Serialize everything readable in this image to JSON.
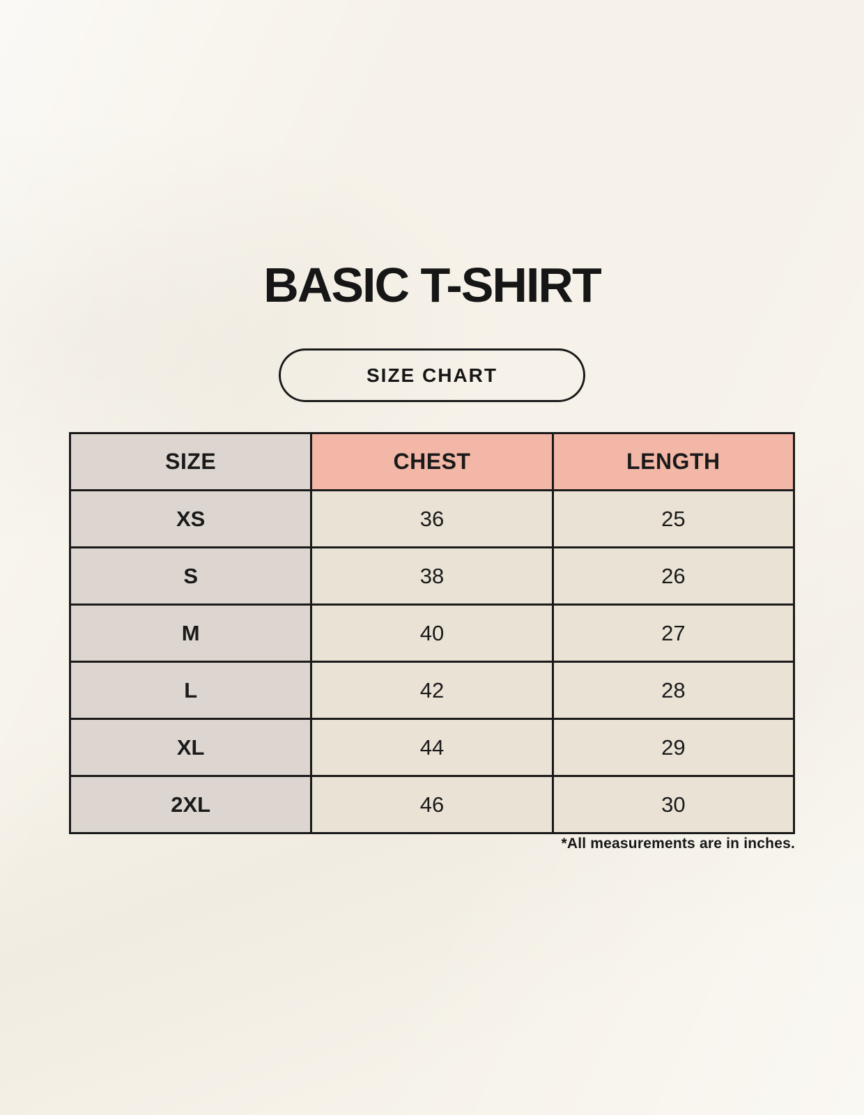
{
  "header": {
    "title": "BASIC T-SHIRT",
    "badge_label": "SIZE CHART"
  },
  "chart_data": {
    "type": "table",
    "title": "BASIC T-SHIRT",
    "subtitle": "SIZE CHART",
    "columns": [
      "SIZE",
      "CHEST",
      "LENGTH"
    ],
    "rows": [
      [
        "XS",
        36,
        25
      ],
      [
        "S",
        38,
        26
      ],
      [
        "M",
        40,
        27
      ],
      [
        "L",
        42,
        28
      ],
      [
        "XL",
        44,
        29
      ],
      [
        "2XL",
        46,
        30
      ]
    ],
    "units": "inches",
    "note": "*All measurements are in inches."
  },
  "footer": {
    "note": "*All measurements are in inches."
  },
  "colors": {
    "page_background": "#f6f2e9",
    "size_column_bg": "#ddd6d0",
    "measure_header_bg": "#f2b7a6",
    "data_cell_bg": "#eae3d5",
    "border": "#1a1a1a",
    "text": "#1a1a1a"
  }
}
